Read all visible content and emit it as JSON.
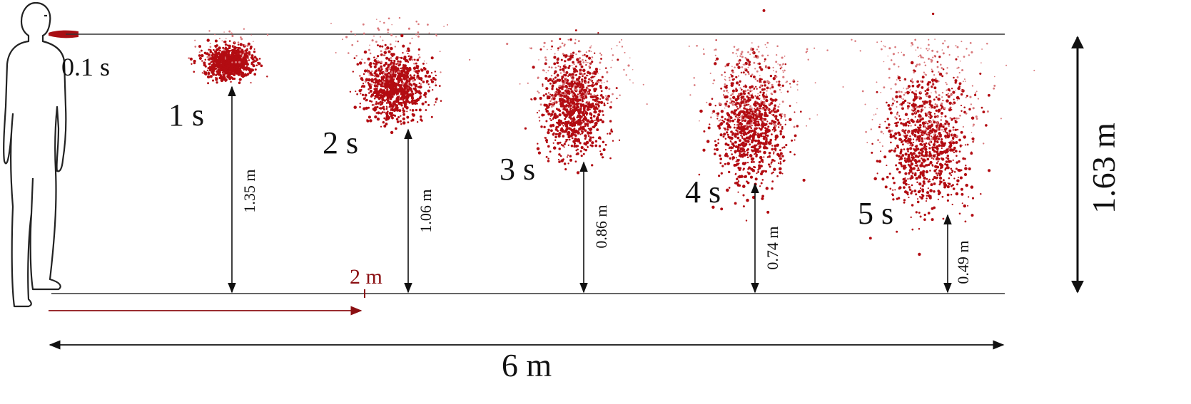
{
  "figure": {
    "height_label": "1.63 m",
    "distance_label": "6 m",
    "marker_label": "2 m",
    "colors": {
      "droplet": "#b30c12",
      "droplet_light": "#d9797c",
      "marker": "#8b0f12",
      "line": "#222222"
    }
  },
  "snapshots": [
    {
      "time_label": "0.1 s",
      "height_label": ""
    },
    {
      "time_label": "1 s",
      "height_label": "1.35 m"
    },
    {
      "time_label": "2 s",
      "height_label": "1.06 m"
    },
    {
      "time_label": "3 s",
      "height_label": "0.86 m"
    },
    {
      "time_label": "4 s",
      "height_label": "0.74 m"
    },
    {
      "time_label": "5 s",
      "height_label": "0.49 m"
    }
  ]
}
